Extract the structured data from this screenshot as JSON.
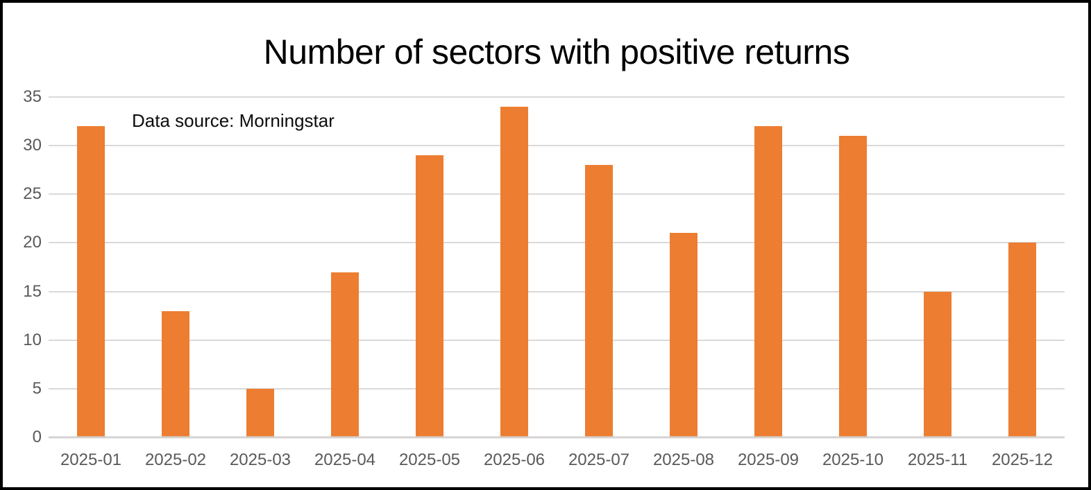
{
  "chart_data": {
    "type": "bar",
    "title": "Number of sectors with positive returns",
    "annotation": "Data source: Morningstar",
    "categories": [
      "2025-01",
      "2025-02",
      "2025-03",
      "2025-04",
      "2025-05",
      "2025-06",
      "2025-07",
      "2025-08",
      "2025-09",
      "2025-10",
      "2025-11",
      "2025-12"
    ],
    "values": [
      32,
      13,
      5,
      17,
      29,
      34,
      28,
      21,
      32,
      31,
      15,
      20
    ],
    "xlabel": "",
    "ylabel": "",
    "ylim": [
      0,
      35
    ],
    "yticks": [
      0,
      5,
      10,
      15,
      20,
      25,
      30,
      35
    ],
    "grid": "horizontal",
    "legend_position": "none",
    "bar_color": "#ed7d31",
    "gridline_color": "#d9d9d9",
    "axis_label_color": "#595959",
    "title_color": "#000000",
    "border_color": "#000000",
    "background_color": "#ffffff"
  }
}
